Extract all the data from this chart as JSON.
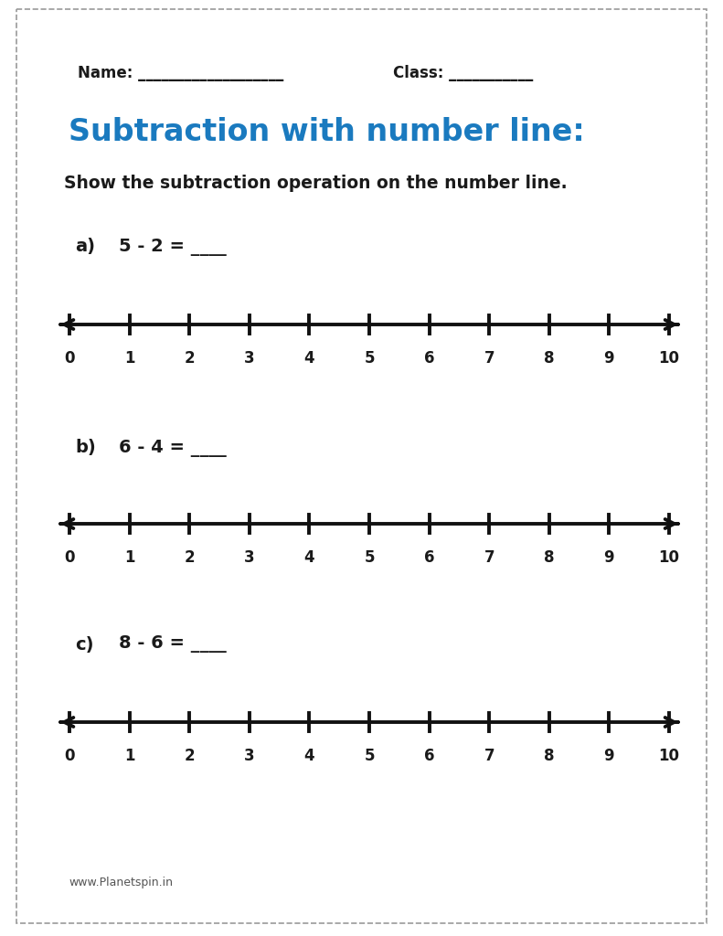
{
  "title": "Subtraction with number line:",
  "title_color": "#1a7abf",
  "subtitle": "Show the subtraction operation on the number line.",
  "name_label": "Name: ___________________",
  "class_label": "Class: ___________",
  "footer": "www.Planetspin.in",
  "bg_color": "#ffffff",
  "border_color": "#999999",
  "problems": [
    {
      "label": "a)",
      "equation": "5 - 2 = ____"
    },
    {
      "label": "b)",
      "equation": "6 - 4 = ____"
    },
    {
      "label": "c)",
      "equation": "8 - 6 = ____"
    }
  ],
  "numberline_min": 0,
  "numberline_max": 10,
  "tick_labels": [
    "0",
    "1",
    "2",
    "3",
    "4",
    "5",
    "6",
    "7",
    "8",
    "9",
    "10"
  ],
  "text_color": "#1a1a1a",
  "line_color": "#111111",
  "name_underline": "___________________",
  "class_underline": "___________"
}
